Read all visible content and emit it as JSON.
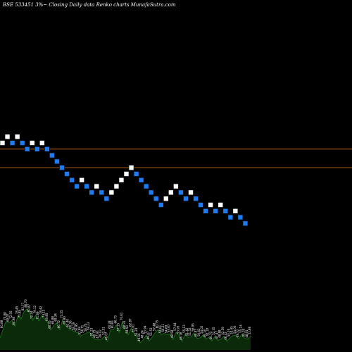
{
  "chart_data": {
    "type": "renko",
    "title": "BSE 533451 3%~  Closing Daily data  Renko  charts MunafaSutra.com",
    "colors": {
      "background": "#000000",
      "up_brick": "#ffffff",
      "down_brick": "#1e7bf0",
      "reference_line": "#b8600e",
      "volume_fill": "#0a2a0a",
      "volume_edge": "#1f7a1f"
    },
    "reference_levels": [
      98,
      86
    ],
    "bricks": [
      {
        "value": 102,
        "dir": "up"
      },
      {
        "value": 106,
        "dir": "up"
      },
      {
        "value": 102,
        "dir": "down"
      },
      {
        "value": 106,
        "dir": "up"
      },
      {
        "value": 102,
        "dir": "down"
      },
      {
        "value": 98,
        "dir": "down"
      },
      {
        "value": 102,
        "dir": "up"
      },
      {
        "value": 98,
        "dir": "down"
      },
      {
        "value": 102,
        "dir": "up"
      },
      {
        "value": 98,
        "dir": "down"
      },
      {
        "value": 94,
        "dir": "down"
      },
      {
        "value": 90,
        "dir": "down"
      },
      {
        "value": 86,
        "dir": "down"
      },
      {
        "value": 82,
        "dir": "down"
      },
      {
        "value": 78,
        "dir": "down"
      },
      {
        "value": 74,
        "dir": "down"
      },
      {
        "value": 78,
        "dir": "up"
      },
      {
        "value": 74,
        "dir": "down"
      },
      {
        "value": 70,
        "dir": "down"
      },
      {
        "value": 74,
        "dir": "up"
      },
      {
        "value": 70,
        "dir": "down"
      },
      {
        "value": 66,
        "dir": "down"
      },
      {
        "value": 70,
        "dir": "up"
      },
      {
        "value": 74,
        "dir": "up"
      },
      {
        "value": 78,
        "dir": "up"
      },
      {
        "value": 82,
        "dir": "up"
      },
      {
        "value": 86,
        "dir": "up"
      },
      {
        "value": 82,
        "dir": "down"
      },
      {
        "value": 78,
        "dir": "down"
      },
      {
        "value": 74,
        "dir": "down"
      },
      {
        "value": 70,
        "dir": "down"
      },
      {
        "value": 66,
        "dir": "down"
      },
      {
        "value": 62,
        "dir": "down"
      },
      {
        "value": 66,
        "dir": "up"
      },
      {
        "value": 70,
        "dir": "up"
      },
      {
        "value": 74,
        "dir": "up"
      },
      {
        "value": 70,
        "dir": "down"
      },
      {
        "value": 66,
        "dir": "down"
      },
      {
        "value": 70,
        "dir": "up"
      },
      {
        "value": 66,
        "dir": "down"
      },
      {
        "value": 62,
        "dir": "down"
      },
      {
        "value": 58,
        "dir": "down"
      },
      {
        "value": 62,
        "dir": "up"
      },
      {
        "value": 58,
        "dir": "down"
      },
      {
        "value": 62,
        "dir": "up"
      },
      {
        "value": 58,
        "dir": "down"
      },
      {
        "value": 54,
        "dir": "down"
      },
      {
        "value": 58,
        "dir": "up"
      },
      {
        "value": 54,
        "dir": "down"
      },
      {
        "value": 50,
        "dir": "down"
      }
    ],
    "volume": {
      "labels": [
        "50.88",
        "60.88",
        "70.88",
        "69.07",
        "72.55",
        "64.98",
        "78.45",
        "73.84",
        "82.77",
        "86.70",
        "80.87",
        "72.34",
        "79.12",
        "71.69",
        "78.42",
        "74.13",
        "69.85",
        "60.35",
        "65.88",
        "69.34",
        "60.72",
        "73.55",
        "65.80",
        "62.40",
        "60.36",
        "58.19",
        "56.95",
        "52.84",
        "54.71",
        "56.70",
        "58.23",
        "51.23",
        "48.75",
        "47.97",
        "49.02",
        "52.51",
        "46.07",
        "60.28",
        "60.81",
        "66.73",
        "57.15",
        "70.61",
        "60.31",
        "54.50",
        "62.87",
        "55.81",
        "51.24",
        "44.56",
        "48.24",
        "53.94",
        "46.97",
        "51.53",
        "57.48",
        "60.75",
        "54.61",
        "56.21",
        "54.69",
        "55.67",
        "48.58",
        "57.64",
        "53.93",
        "46.16",
        "55.13",
        "51.42",
        "51.52",
        "56.95",
        "49.97",
        "50.62",
        "54.02",
        "49.18",
        "51.37",
        "46.70",
        "52.35",
        "47.47",
        "48.88",
        "52.59",
        "46.42",
        "50.29",
        "53.45",
        "54.00",
        "49.52",
        "55.14",
        "50.19",
        "48.91",
        "52.86"
      ]
    }
  }
}
